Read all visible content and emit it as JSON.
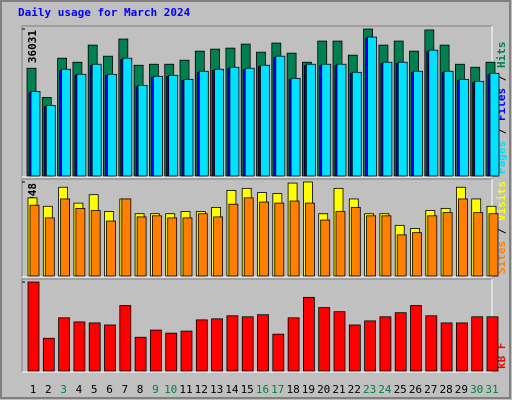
{
  "chart_data": [
    {
      "type": "bar",
      "title": "Daily usage for March 2024",
      "ylim": [
        0,
        36031
      ],
      "yticks": [
        36031
      ],
      "legend_separator": " / ",
      "series": [
        {
          "name": "Hits",
          "color": "#008050",
          "values": [
            26408,
            19250,
            28876,
            27888,
            32084,
            29369,
            33565,
            27148,
            27395,
            27395,
            28382,
            30603,
            31097,
            31344,
            32331,
            30356,
            32578,
            30110,
            27888,
            33071,
            33071,
            29616,
            36031,
            32084,
            33071,
            30603,
            35800,
            32084,
            27395,
            26654,
            27888
          ]
        },
        {
          "name": "Files",
          "color": "#0000ff",
          "values": [
            20431,
            16976,
            25861,
            24627,
            27095,
            24627,
            28576,
            21912,
            24133,
            24380,
            23393,
            25367,
            25861,
            26354,
            26108,
            26848,
            29069,
            23640,
            27095,
            27095,
            27095,
            25120,
            33758,
            27588,
            27588,
            25367,
            30550,
            25367,
            23393,
            22899,
            24874
          ]
        },
        {
          "name": "Pages",
          "color": "#00e0ff",
          "values": [
            20731,
            17276,
            26161,
            24927,
            27395,
            24927,
            28876,
            22212,
            24433,
            24680,
            23693,
            25667,
            26161,
            26654,
            26408,
            27148,
            29369,
            23940,
            27395,
            27395,
            27395,
            25420,
            34058,
            27888,
            27888,
            25667,
            30850,
            25667,
            23693,
            23199,
            25174
          ]
        }
      ]
    },
    {
      "type": "bar",
      "ylim": [
        0,
        948
      ],
      "yticks": [
        948
      ],
      "legend_separator": " / ",
      "series": [
        {
          "name": "Visits",
          "color": "#ffff00",
          "values": [
            788,
            703,
            895,
            735,
            820,
            650,
            777,
            628,
            628,
            628,
            650,
            650,
            692,
            863,
            884,
            841,
            831,
            937,
            948,
            628,
            884,
            777,
            628,
            628,
            511,
            479,
            660,
            682,
            895,
            777,
            703
          ]
        },
        {
          "name": "Sites",
          "color": "#ff8000",
          "values": [
            714,
            586,
            777,
            682,
            660,
            554,
            777,
            596,
            607,
            586,
            586,
            628,
            596,
            724,
            788,
            746,
            735,
            756,
            735,
            564,
            650,
            692,
            607,
            607,
            415,
            437,
            607,
            639,
            777,
            639,
            628
          ]
        }
      ]
    },
    {
      "type": "bar",
      "ylim": [
        0,
        1456499
      ],
      "yticks": [
        1456499
      ],
      "legend_separator": " / ",
      "categories": [
        "1",
        "2",
        "3",
        "4",
        "5",
        "6",
        "7",
        "8",
        "9",
        "10",
        "11",
        "12",
        "13",
        "14",
        "15",
        "16",
        "17",
        "18",
        "19",
        "20",
        "21",
        "22",
        "23",
        "24",
        "25",
        "26",
        "27",
        "28",
        "29",
        "30",
        "31"
      ],
      "category_colors": [
        "#000000",
        "#000000",
        "#008040",
        "#000000",
        "#000000",
        "#000000",
        "#000000",
        "#000000",
        "#008040",
        "#008040",
        "#000000",
        "#000000",
        "#000000",
        "#000000",
        "#000000",
        "#008040",
        "#008040",
        "#000000",
        "#000000",
        "#000000",
        "#000000",
        "#000000",
        "#008040",
        "#008040",
        "#000000",
        "#000000",
        "#000000",
        "#000000",
        "#000000",
        "#008040",
        "#008040"
      ],
      "series": [
        {
          "name": "kB F",
          "color": "#ff0000",
          "values": [
            1456499,
            535712,
            870532,
            803568,
            786827,
            753345,
            1071424,
            552453,
            669640,
            619417,
            652899,
            837050,
            853791,
            904014,
            887273,
            920755,
            602676,
            870532,
            1205352,
            1037942,
            970978,
            753345,
            820309,
            887273,
            954237,
            1071424,
            904014,
            786827,
            786827,
            887273,
            887273
          ]
        }
      ]
    }
  ]
}
